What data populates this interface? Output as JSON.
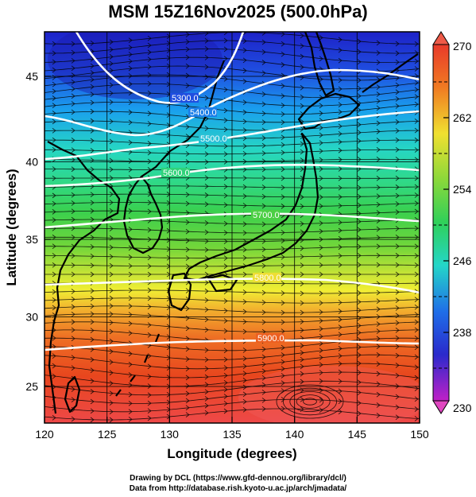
{
  "title": "MSM 15Z16Nov2025 (500.0hPa)",
  "xaxis": {
    "label": "Longitude (degrees)",
    "range": [
      120,
      150
    ],
    "ticks": [
      "120",
      "125",
      "130",
      "135",
      "140",
      "145",
      "150"
    ]
  },
  "yaxis": {
    "label": "Latitude  (degrees)",
    "range": [
      22.4,
      47.6
    ],
    "ticks": [
      "25",
      "30",
      "35",
      "40",
      "45"
    ]
  },
  "colorbar": {
    "min": 230,
    "max": 270,
    "labels": [
      "270",
      "262",
      "254",
      "246",
      "238",
      "230"
    ]
  },
  "contours": [
    {
      "value": 5300,
      "label": "5300.0"
    },
    {
      "value": 5400,
      "label": "5400.0"
    },
    {
      "value": 5500,
      "label": "5500.0"
    },
    {
      "value": 5600,
      "label": "5600.0"
    },
    {
      "value": 5700,
      "label": "5700.0"
    },
    {
      "value": 5800,
      "label": "5800.0"
    },
    {
      "value": 5900,
      "label": "5900.0"
    }
  ],
  "credits": {
    "line1": "Drawing by DCL (https://www.gfd-dennou.org/library/dcl/)",
    "line2": "Data from http://database.rish.kyoto-u.ac.jp/arch/jmadata/"
  }
}
